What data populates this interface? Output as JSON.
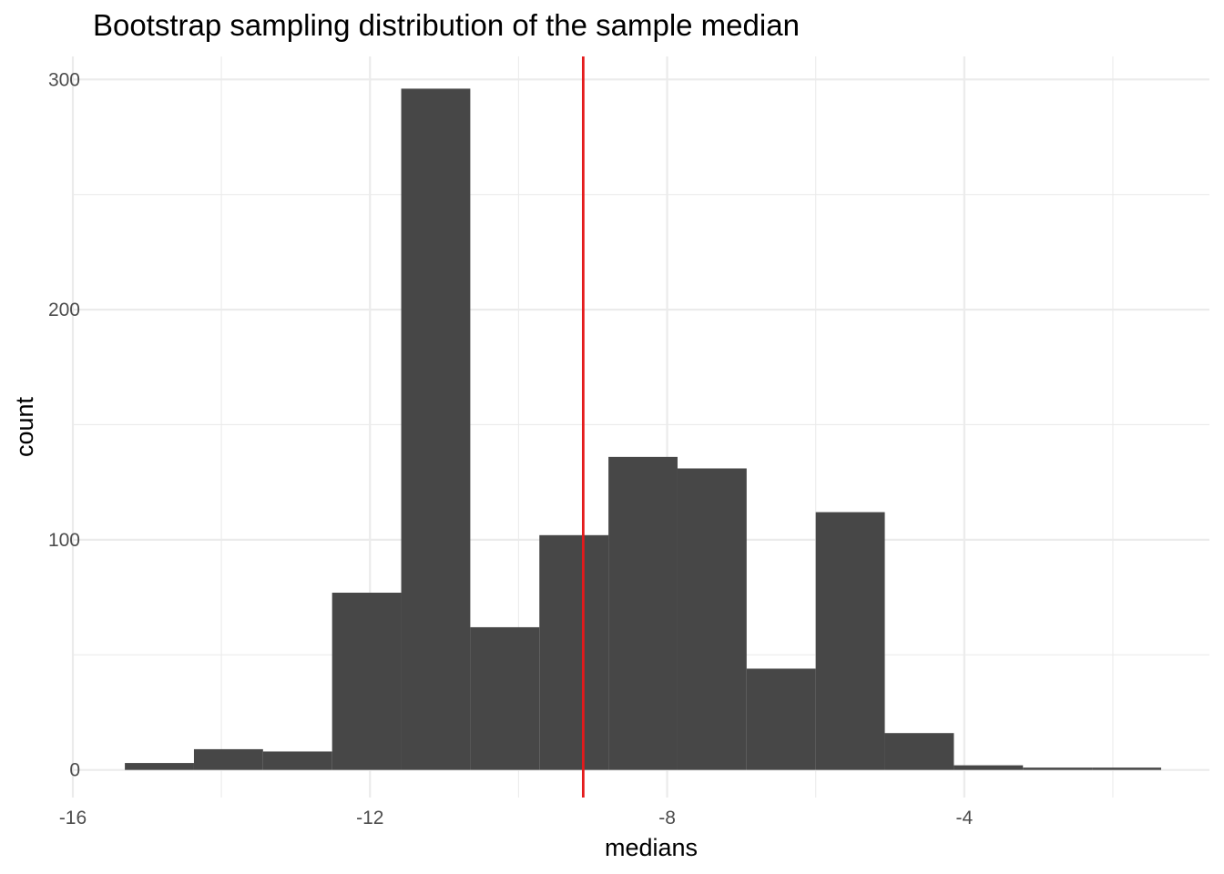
{
  "chart_data": {
    "type": "bar",
    "title": "Bootstrap sampling distribution of the sample median",
    "xlabel": "medians",
    "ylabel": "count",
    "xlim": [
      -16,
      -0.7
    ],
    "ylim": [
      -12,
      310
    ],
    "x_ticks": [
      -16,
      -12,
      -8,
      -4
    ],
    "y_ticks": [
      0,
      100,
      200,
      300
    ],
    "x_tick_labels": [
      "-16",
      "-12",
      "-8",
      "-4"
    ],
    "y_tick_labels": [
      "0",
      "100",
      "200",
      "300"
    ],
    "grid": true,
    "legend": "none",
    "bins": [
      {
        "x0": -15.3,
        "x1": -14.37,
        "count": 3
      },
      {
        "x0": -14.37,
        "x1": -13.44,
        "count": 9
      },
      {
        "x0": -13.44,
        "x1": -12.51,
        "count": 8
      },
      {
        "x0": -12.51,
        "x1": -11.58,
        "count": 77
      },
      {
        "x0": -11.58,
        "x1": -10.65,
        "count": 296
      },
      {
        "x0": -10.65,
        "x1": -9.72,
        "count": 62
      },
      {
        "x0": -9.72,
        "x1": -8.79,
        "count": 102
      },
      {
        "x0": -8.79,
        "x1": -7.86,
        "count": 136
      },
      {
        "x0": -7.86,
        "x1": -6.93,
        "count": 131
      },
      {
        "x0": -6.93,
        "x1": -6.0,
        "count": 44
      },
      {
        "x0": -6.0,
        "x1": -5.07,
        "count": 112
      },
      {
        "x0": -5.07,
        "x1": -4.14,
        "count": 16
      },
      {
        "x0": -4.14,
        "x1": -3.21,
        "count": 2
      },
      {
        "x0": -3.21,
        "x1": -2.28,
        "count": 1
      },
      {
        "x0": -2.28,
        "x1": -1.35,
        "count": 1
      }
    ],
    "vline": {
      "x": -9.13,
      "color": "#e41a1c"
    },
    "bar_color": "#474747"
  }
}
